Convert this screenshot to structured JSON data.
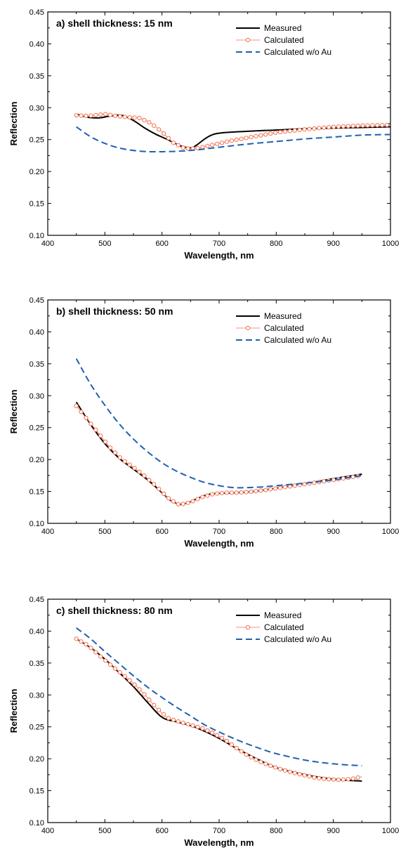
{
  "chart_data": [
    {
      "type": "line",
      "title": "a) shell thickness: 15 nm",
      "xlabel": "Wavelength, nm",
      "ylabel": "Reflection",
      "xlim": [
        400,
        1000
      ],
      "ylim": [
        0.1,
        0.45
      ],
      "xticks": [
        400,
        500,
        600,
        700,
        800,
        900,
        1000
      ],
      "yticks": [
        0.1,
        0.15,
        0.2,
        0.25,
        0.3,
        0.35,
        0.4,
        0.45
      ],
      "legend_position": "top-right",
      "grid": false,
      "series": [
        {
          "name": "Measured",
          "color": "#000000",
          "style": "solid",
          "x": [
            450,
            470,
            490,
            510,
            530,
            550,
            570,
            590,
            610,
            630,
            650,
            660,
            680,
            700,
            750,
            800,
            850,
            900,
            950,
            1000
          ],
          "y": [
            0.29,
            0.285,
            0.284,
            0.287,
            0.288,
            0.28,
            0.268,
            0.258,
            0.25,
            0.241,
            0.237,
            0.241,
            0.254,
            0.26,
            0.263,
            0.265,
            0.267,
            0.268,
            0.269,
            0.27
          ]
        },
        {
          "name": "Calculated",
          "color": "#f07050",
          "style": "markers",
          "x": [
            450,
            470,
            490,
            500,
            520,
            540,
            560,
            580,
            600,
            620,
            640,
            660,
            680,
            700,
            720,
            750,
            800,
            850,
            900,
            950,
            1000
          ],
          "y": [
            0.288,
            0.287,
            0.289,
            0.29,
            0.287,
            0.285,
            0.284,
            0.276,
            0.262,
            0.245,
            0.236,
            0.236,
            0.24,
            0.244,
            0.248,
            0.253,
            0.261,
            0.266,
            0.27,
            0.272,
            0.273
          ]
        },
        {
          "name": "Calculated w/o Au",
          "color": "#2060b0",
          "style": "dashed",
          "x": [
            450,
            480,
            520,
            560,
            600,
            650,
            700,
            750,
            800,
            850,
            900,
            950,
            1000
          ],
          "y": [
            0.27,
            0.252,
            0.238,
            0.232,
            0.231,
            0.233,
            0.238,
            0.243,
            0.247,
            0.251,
            0.254,
            0.257,
            0.258
          ]
        }
      ]
    },
    {
      "type": "line",
      "title": "b) shell thickness: 50 nm",
      "xlabel": "Wavelength, nm",
      "ylabel": "Reflection",
      "xlim": [
        400,
        1000
      ],
      "ylim": [
        0.1,
        0.45
      ],
      "xticks": [
        400,
        500,
        600,
        700,
        800,
        900,
        1000
      ],
      "yticks": [
        0.1,
        0.15,
        0.2,
        0.25,
        0.3,
        0.35,
        0.4,
        0.45
      ],
      "legend_position": "top-right",
      "grid": false,
      "series": [
        {
          "name": "Measured",
          "color": "#000000",
          "style": "solid",
          "x": [
            450,
            475,
            500,
            525,
            550,
            575,
            600,
            615,
            630,
            645,
            660,
            680,
            700,
            730,
            760,
            800,
            850,
            900,
            950
          ],
          "y": [
            0.29,
            0.255,
            0.225,
            0.202,
            0.185,
            0.168,
            0.148,
            0.136,
            0.13,
            0.132,
            0.138,
            0.145,
            0.147,
            0.148,
            0.15,
            0.155,
            0.162,
            0.17,
            0.177
          ]
        },
        {
          "name": "Calculated",
          "color": "#f07050",
          "style": "markers",
          "x": [
            450,
            470,
            490,
            510,
            530,
            550,
            570,
            590,
            610,
            630,
            650,
            670,
            690,
            710,
            730,
            750,
            780,
            810,
            840,
            870,
            900,
            930,
            950
          ],
          "y": [
            0.284,
            0.262,
            0.24,
            0.218,
            0.2,
            0.188,
            0.174,
            0.158,
            0.14,
            0.129,
            0.133,
            0.141,
            0.146,
            0.148,
            0.148,
            0.149,
            0.152,
            0.156,
            0.16,
            0.164,
            0.168,
            0.172,
            0.175
          ]
        },
        {
          "name": "Calculated w/o Au",
          "color": "#2060b0",
          "style": "dashed",
          "x": [
            450,
            475,
            500,
            525,
            550,
            575,
            600,
            625,
            650,
            675,
            700,
            725,
            750,
            775,
            800,
            850,
            900,
            950
          ],
          "y": [
            0.358,
            0.318,
            0.285,
            0.256,
            0.232,
            0.212,
            0.195,
            0.182,
            0.172,
            0.164,
            0.159,
            0.156,
            0.156,
            0.157,
            0.159,
            0.163,
            0.168,
            0.175
          ]
        }
      ]
    },
    {
      "type": "line",
      "title": "c) shell thickness: 80 nm",
      "xlabel": "Wavelength, nm",
      "ylabel": "Reflection",
      "xlim": [
        400,
        1000
      ],
      "ylim": [
        0.1,
        0.45
      ],
      "xticks": [
        400,
        500,
        600,
        700,
        800,
        900,
        1000
      ],
      "yticks": [
        0.1,
        0.15,
        0.2,
        0.25,
        0.3,
        0.35,
        0.4,
        0.45
      ],
      "legend_position": "top-right",
      "grid": false,
      "series": [
        {
          "name": "Measured",
          "color": "#000000",
          "style": "solid",
          "x": [
            450,
            475,
            500,
            525,
            550,
            575,
            600,
            625,
            650,
            675,
            700,
            725,
            750,
            775,
            800,
            850,
            900,
            950
          ],
          "y": [
            0.388,
            0.374,
            0.356,
            0.335,
            0.313,
            0.288,
            0.265,
            0.258,
            0.252,
            0.243,
            0.232,
            0.219,
            0.207,
            0.196,
            0.186,
            0.175,
            0.168,
            0.165
          ]
        },
        {
          "name": "Calculated",
          "color": "#f07050",
          "style": "markers",
          "x": [
            450,
            470,
            490,
            510,
            530,
            550,
            570,
            590,
            610,
            630,
            650,
            670,
            690,
            710,
            730,
            750,
            770,
            790,
            810,
            830,
            850,
            870,
            890,
            910,
            930,
            950
          ],
          "y": [
            0.388,
            0.378,
            0.362,
            0.347,
            0.333,
            0.318,
            0.3,
            0.28,
            0.264,
            0.258,
            0.253,
            0.248,
            0.24,
            0.23,
            0.217,
            0.205,
            0.196,
            0.189,
            0.183,
            0.178,
            0.174,
            0.17,
            0.168,
            0.167,
            0.168,
            0.172
          ]
        },
        {
          "name": "Calculated w/o Au",
          "color": "#2060b0",
          "style": "dashed",
          "x": [
            450,
            475,
            500,
            525,
            550,
            575,
            600,
            625,
            650,
            675,
            700,
            725,
            750,
            775,
            800,
            850,
            900,
            950
          ],
          "y": [
            0.405,
            0.388,
            0.368,
            0.349,
            0.33,
            0.312,
            0.296,
            0.281,
            0.267,
            0.253,
            0.242,
            0.232,
            0.223,
            0.215,
            0.208,
            0.198,
            0.192,
            0.189
          ]
        }
      ]
    }
  ]
}
